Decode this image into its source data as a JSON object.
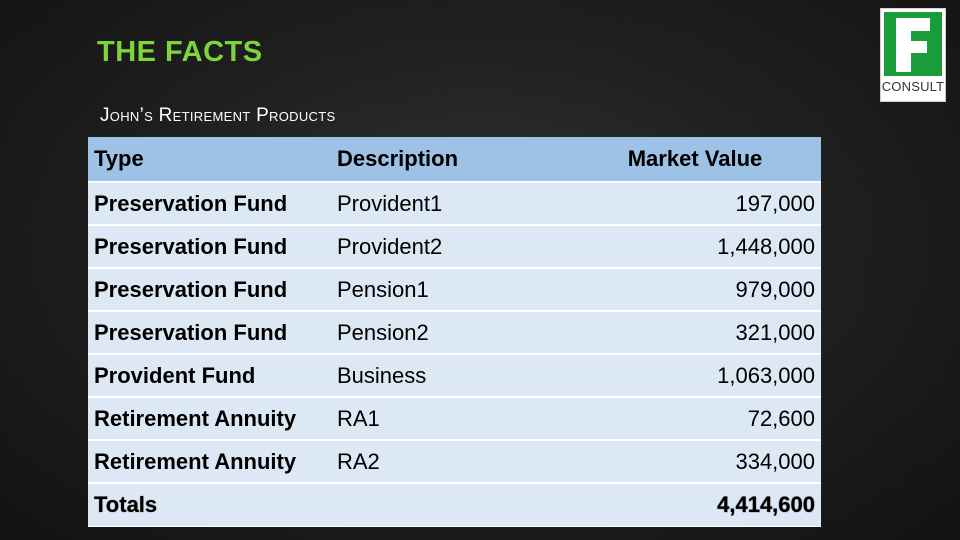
{
  "slide": {
    "title": "THE FACTS",
    "subtitle": "John’s Retirement Products"
  },
  "logo": {
    "letter": "F",
    "text": "CONSULT",
    "color": "#1c9b3a"
  },
  "table": {
    "headers": [
      "Type",
      "Description",
      "Market Value"
    ],
    "rows": [
      {
        "type": "Preservation Fund",
        "description": "Provident1",
        "value": "197,000"
      },
      {
        "type": "Preservation Fund",
        "description": "Provident2",
        "value": "1,448,000"
      },
      {
        "type": "Preservation Fund",
        "description": "Pension1",
        "value": "979,000"
      },
      {
        "type": "Preservation Fund",
        "description": "Pension2",
        "value": "321,000"
      },
      {
        "type": "Provident Fund",
        "description": "Business",
        "value": "1,063,000"
      },
      {
        "type": "Retirement Annuity",
        "description": "RA1",
        "value": "72,600"
      },
      {
        "type": "Retirement Annuity",
        "description": "RA2",
        "value": "334,000"
      }
    ],
    "totals": {
      "label": "Totals",
      "description": "",
      "value": "4,414,600"
    }
  }
}
